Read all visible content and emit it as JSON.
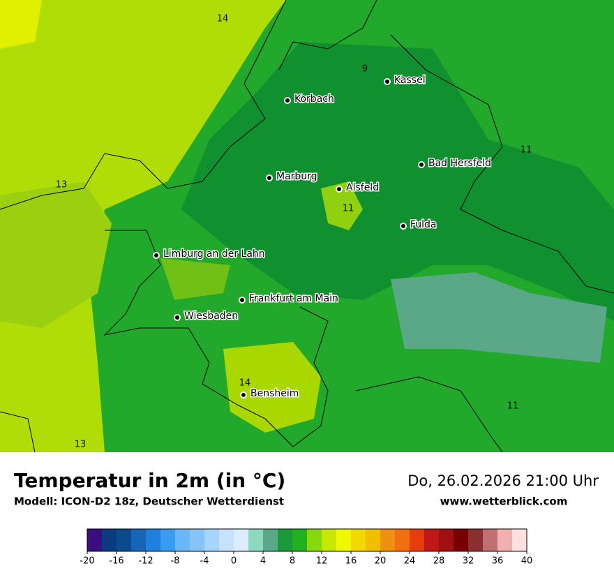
{
  "title": "Temperatur in 2m (in °C)",
  "subtitle": "Modell: ICON-D2 18z, Deutscher Wetterdienst",
  "datetime": "Do, 26.02.2026 21:00 Uhr",
  "website": "www.wetterblick.com",
  "cities": [
    "Kassel",
    "Korbach",
    "Bad Hersfeld",
    "Marburg",
    "Alsfeld",
    "Fulda",
    "Limburg an der Lahn",
    "Frankfurt am Main",
    "Wiesbaden",
    "Bensheim"
  ],
  "contour_labels": [
    14,
    9,
    11,
    13,
    11,
    14,
    11,
    13
  ],
  "colorbar": {
    "min": -20,
    "max": 40,
    "ticks": [
      -20,
      -16,
      -12,
      -8,
      -4,
      0,
      4,
      8,
      12,
      16,
      20,
      24,
      28,
      32,
      36,
      40
    ],
    "colors": [
      "#3a0d80",
      "#0a3a80",
      "#0c4a90",
      "#1566b8",
      "#1f80e0",
      "#3a9cf0",
      "#6ab8f8",
      "#86c4f8",
      "#a6d4fa",
      "#c6e2fc",
      "#dcecfc",
      "#8ed8c0",
      "#5aa888",
      "#1a9a3a",
      "#20b020",
      "#88d810",
      "#c8e800",
      "#f0f800",
      "#f0d800",
      "#f0c000",
      "#f09010",
      "#f07010",
      "#e83c10",
      "#c01818",
      "#a01010",
      "#780000",
      "#8a3030",
      "#c07070",
      "#f0b0b0",
      "#ffe0e0"
    ]
  }
}
